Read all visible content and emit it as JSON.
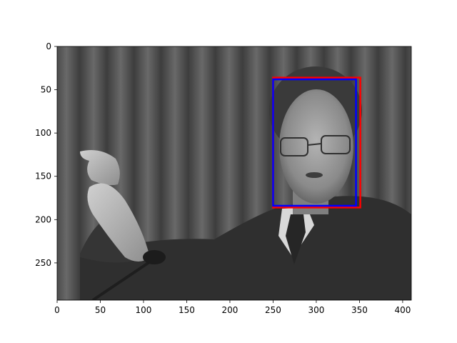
{
  "chart_data": {
    "type": "image",
    "image": {
      "description_colors": {
        "background": "#4a4a4a",
        "curtain_dark": "#2c2c2c",
        "curtain_light": "#6a6a6a",
        "suit": "#2e2e2e",
        "skin": "#9a9a9a",
        "hair": "#3a3a3a"
      },
      "extent": {
        "x": [
          0,
          410
        ],
        "y": [
          293,
          0
        ]
      }
    },
    "x_ticks": [
      0,
      50,
      100,
      150,
      200,
      250,
      300,
      350,
      400
    ],
    "y_ticks": [
      0,
      50,
      100,
      150,
      200,
      250
    ],
    "xlim": [
      0,
      410
    ],
    "ylim": [
      293,
      0
    ],
    "boxes": [
      {
        "name": "red",
        "color": "#ff0000",
        "x0": 250,
        "y0": 36,
        "x1": 351,
        "y1": 186
      },
      {
        "name": "blue",
        "color": "#0000ff",
        "x0": 250,
        "y0": 38,
        "x1": 346,
        "y1": 184
      }
    ],
    "title": "",
    "xlabel": "",
    "ylabel": ""
  }
}
